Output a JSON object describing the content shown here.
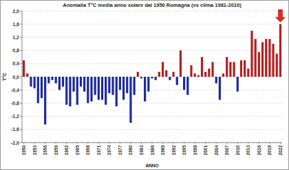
{
  "chart_data": {
    "type": "bar",
    "title": "Anomalia T°C media anno solare dal 1950 Romagna (vs clima 1981-2010)",
    "x_label": "ANNO",
    "y_label": "T°C",
    "categories": [
      "1950",
      null,
      null,
      "1953",
      null,
      null,
      "1956",
      null,
      null,
      "1959",
      null,
      null,
      "1962",
      null,
      null,
      "1965",
      null,
      null,
      "1968",
      null,
      null,
      "1971",
      null,
      null,
      "1974",
      null,
      null,
      "1977",
      null,
      null,
      "1980",
      null,
      null,
      "1983",
      null,
      null,
      "1986",
      null,
      null,
      "1989",
      null,
      null,
      "1992",
      null,
      null,
      "1995",
      null,
      null,
      "1998",
      null,
      null,
      "2001",
      null,
      null,
      "2004",
      null,
      null,
      "2007",
      null,
      null,
      "2010",
      null,
      null,
      "2013",
      null,
      null,
      "2016",
      null,
      null,
      "2019",
      null,
      null,
      "2022"
    ],
    "values": [
      0.5,
      0.1,
      -0.3,
      -0.35,
      -0.8,
      -0.65,
      -1.45,
      -0.2,
      -0.1,
      -0.2,
      -0.4,
      -0.3,
      -0.85,
      -0.9,
      -0.45,
      -0.85,
      -0.3,
      -0.45,
      -0.8,
      -0.75,
      -0.55,
      -0.7,
      -0.7,
      -0.85,
      -0.5,
      -0.55,
      -0.9,
      -0.4,
      -0.7,
      -0.5,
      -1.4,
      -0.55,
      0.15,
      -0.05,
      -0.75,
      -0.45,
      -0.05,
      -0.1,
      0.15,
      0.45,
      0.2,
      -0.1,
      0.15,
      -0.25,
      0.8,
      -0.4,
      -0.55,
      0.35,
      0.1,
      0.05,
      0.6,
      0.15,
      0.25,
      0.45,
      -0.2,
      -0.7,
      0.1,
      0.6,
      0.45,
      0.45,
      -0.45,
      0.5,
      0.5,
      0.25,
      1.4,
      1.15,
      0.75,
      1.05,
      1.15,
      1.15,
      1.0,
      0.7,
      1.6
    ],
    "colors": [
      "#b02020",
      "#b02020",
      "#1c2a9c",
      "#1c2a9c",
      "#1c2a9c",
      "#1c2a9c",
      "#1c2a9c",
      "#1c2a9c",
      "#1c2a9c",
      "#1c2a9c",
      "#1c2a9c",
      "#1c2a9c",
      "#1c2a9c",
      "#1c2a9c",
      "#1c2a9c",
      "#1c2a9c",
      "#1c2a9c",
      "#1c2a9c",
      "#1c2a9c",
      "#1c2a9c",
      "#1c2a9c",
      "#1c2a9c",
      "#1c2a9c",
      "#1c2a9c",
      "#1c2a9c",
      "#1c2a9c",
      "#1c2a9c",
      "#1c2a9c",
      "#1c2a9c",
      "#1c2a9c",
      "#1c2a9c",
      "#1c2a9c",
      "#b02020",
      "#1c2a9c",
      "#1c2a9c",
      "#1c2a9c",
      "#1c2a9c",
      "#1c2a9c",
      "#b02020",
      "#b02020",
      "#b02020",
      "#1c2a9c",
      "#b02020",
      "#1c2a9c",
      "#b02020",
      "#1c2a9c",
      "#1c2a9c",
      "#b02020",
      "#b02020",
      "#b02020",
      "#b02020",
      "#b02020",
      "#b02020",
      "#b02020",
      "#1c2a9c",
      "#1c2a9c",
      "#b02020",
      "#b02020",
      "#b02020",
      "#b02020",
      "#1c2a9c",
      "#b02020",
      "#b02020",
      "#b02020",
      "#b02020",
      "#b02020",
      "#b02020",
      "#b02020",
      "#b02020",
      "#b02020",
      "#b02020",
      "#b02020",
      "#b02020"
    ],
    "ylim": [
      -2,
      2
    ],
    "yticks": [
      {
        "value": -2,
        "label": "-2,0"
      },
      {
        "value": -1.6,
        "label": "-1,6"
      },
      {
        "value": -1.2,
        "label": "-1,2"
      },
      {
        "value": -0.8,
        "label": "-0,8"
      },
      {
        "value": -0.4,
        "label": "-0,4"
      },
      {
        "value": 0,
        "label": "0,0"
      },
      {
        "value": 0.4,
        "label": "0,4"
      },
      {
        "value": 0.8,
        "label": "0,8"
      },
      {
        "value": 1.2,
        "label": "1,2"
      },
      {
        "value": 1.6,
        "label": "1,6"
      },
      {
        "value": 2,
        "label": "2,0"
      }
    ],
    "grid": true
  }
}
